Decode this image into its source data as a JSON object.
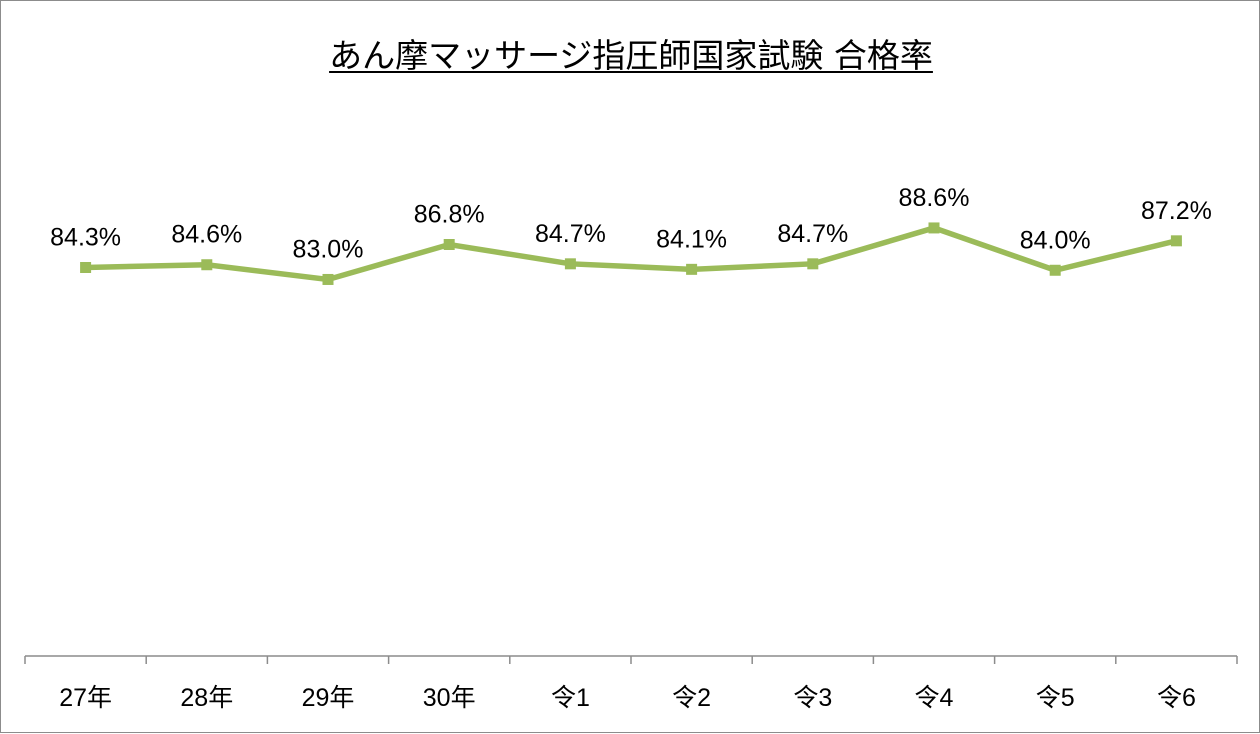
{
  "chart_data": {
    "type": "line",
    "title": "あん摩マッサージ指圧師国家試験 合格率",
    "categories": [
      "27年",
      "28年",
      "29年",
      "30年",
      "令1",
      "令2",
      "令3",
      "令4",
      "令5",
      "令6"
    ],
    "series": [
      {
        "values": [
          84.3,
          84.6,
          83.0,
          86.8,
          84.7,
          84.1,
          84.7,
          88.6,
          84.0,
          87.2
        ],
        "labels": [
          "84.3%",
          "84.6%",
          "83.0%",
          "86.8%",
          "84.7%",
          "84.1%",
          "84.7%",
          "88.6%",
          "84.0%",
          "87.2%"
        ],
        "color": "#9bbb59"
      }
    ],
    "ylim": [
      0,
      100
    ],
    "grid": false,
    "legend": "none"
  }
}
